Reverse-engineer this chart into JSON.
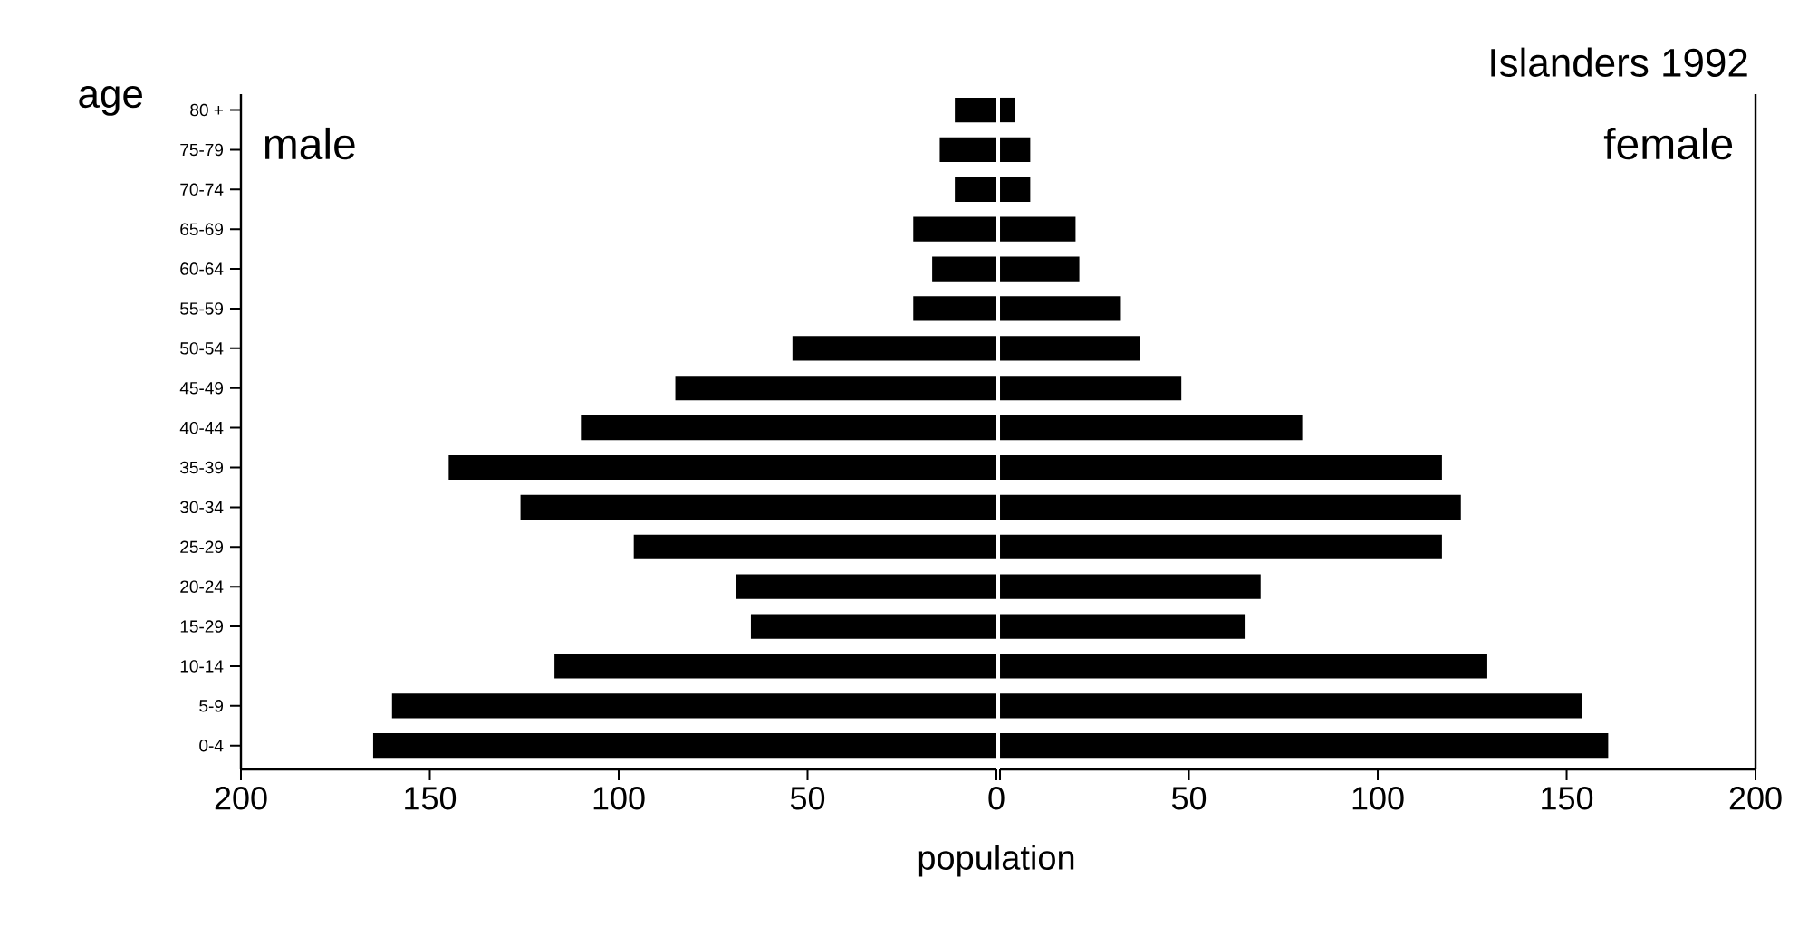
{
  "chart_data": [
    {
      "type": "bar",
      "orientation": "horizontal",
      "xlabel": "population",
      "ylabel": "age",
      "categories": [
        "80 +",
        "75-79",
        "70-74",
        "65-69",
        "60-64",
        "55-59",
        "50-54",
        "45-49",
        "40-44",
        "35-39",
        "30-34",
        "25-29",
        "20-24",
        "15-29",
        "10-14",
        "5-9",
        "0-4"
      ],
      "series": [
        {
          "name": "male",
          "color": "#000000",
          "values": [
            11,
            15,
            11,
            22,
            17,
            22,
            54,
            85,
            110,
            145,
            126,
            96,
            69,
            65,
            117,
            160,
            165
          ]
        }
      ],
      "xlim": [
        200,
        0
      ],
      "xticks": [
        200,
        150,
        100,
        50,
        0
      ]
    },
    {
      "type": "bar",
      "orientation": "horizontal",
      "title": "Islanders 1992",
      "categories": [
        null,
        null,
        null,
        null,
        null,
        null,
        null,
        null,
        null,
        null,
        null,
        null,
        null,
        null,
        null,
        null,
        null
      ],
      "series": [
        {
          "name": "female",
          "color": "#000000",
          "values": [
            4,
            8,
            8,
            20,
            21,
            32,
            37,
            48,
            80,
            117,
            122,
            117,
            69,
            65,
            129,
            154,
            161
          ]
        }
      ],
      "xlim": [
        0,
        200
      ],
      "xticks": [
        {
          "value": 0,
          "label": null
        },
        50,
        100,
        150,
        200
      ],
      "tick_labels": "x"
    }
  ]
}
